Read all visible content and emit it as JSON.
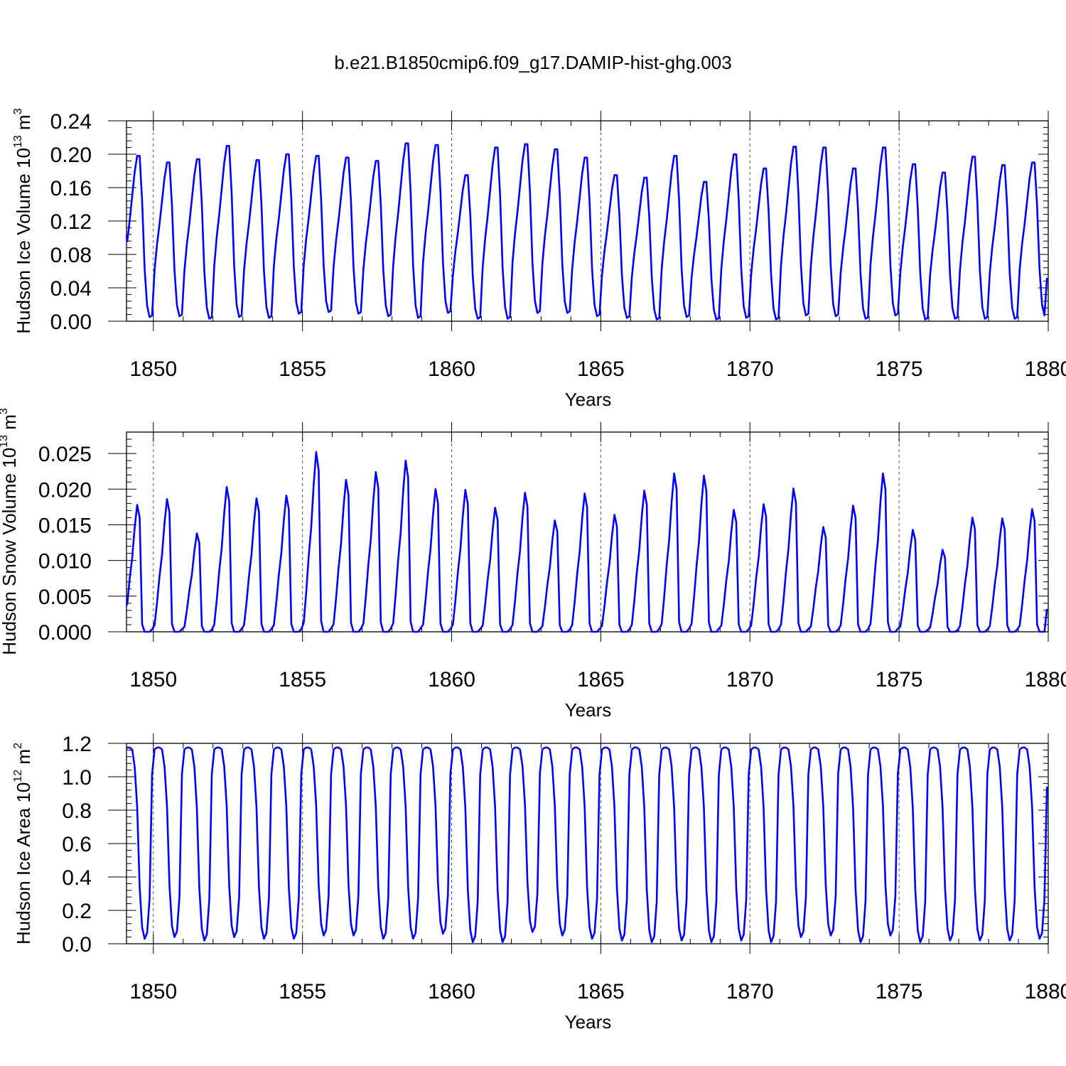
{
  "figure": {
    "title": "b.e21.B1850cmip6.f09_g17.DAMIP-hist-ghg.003"
  },
  "chart_data": [
    {
      "type": "line",
      "title": "",
      "xlabel": "Years",
      "ylabel": "Hudson Ice Volume 10",
      "ylabel_sup": "13",
      "ylabel_unit": " m",
      "ylabel_unit_sup": "3",
      "xlim": [
        1849.1,
        1880.0
      ],
      "ylim": [
        0.0,
        0.24
      ],
      "xticks": [
        1850,
        1855,
        1860,
        1865,
        1870,
        1875,
        1880
      ],
      "yticks": [
        0.0,
        0.04,
        0.08,
        0.12,
        0.16,
        0.2,
        0.24
      ],
      "ytick_labels": [
        "0.00",
        "0.04",
        "0.08",
        "0.12",
        "0.16",
        "0.20",
        "0.24"
      ],
      "vlines": [
        1850,
        1855,
        1860,
        1865,
        1870,
        1875
      ],
      "line_color": "#0000ff",
      "series": [
        {
          "x_start": 1849.0417,
          "x_step": 0.083333,
          "peaks": [
            0.198,
            0.19,
            0.194,
            0.21,
            0.193,
            0.2,
            0.198,
            0.196,
            0.192,
            0.213,
            0.211,
            0.175,
            0.208,
            0.212,
            0.206,
            0.196,
            0.175,
            0.172,
            0.198,
            0.167,
            0.2,
            0.183,
            0.209,
            0.208,
            0.183,
            0.208,
            0.188,
            0.178,
            0.197,
            0.187,
            0.19
          ],
          "troughs": [
            0.005,
            0.006,
            0.003,
            0.005,
            0.004,
            0.009,
            0.011,
            0.009,
            0.006,
            0.004,
            0.01,
            0.003,
            0.003,
            0.01,
            0.01,
            0.006,
            0.004,
            0.002,
            0.005,
            0.002,
            0.004,
            0.002,
            0.007,
            0.006,
            0.003,
            0.007,
            0.002,
            0.003,
            0.003,
            0.003,
            0.007
          ],
          "first_value": 0.102,
          "last_value": 0.052,
          "shape": "ice"
        }
      ]
    },
    {
      "type": "line",
      "title": "",
      "xlabel": "Years",
      "ylabel": "Hudson Snow Volume 10",
      "ylabel_sup": "13",
      "ylabel_unit": " m",
      "ylabel_unit_sup": "3",
      "xlim": [
        1849.1,
        1880.0
      ],
      "ylim": [
        0.0,
        0.028
      ],
      "xticks": [
        1850,
        1855,
        1860,
        1865,
        1870,
        1875,
        1880
      ],
      "yticks": [
        0.0,
        0.005,
        0.01,
        0.015,
        0.02,
        0.025
      ],
      "ytick_labels": [
        "0.000",
        "0.005",
        "0.010",
        "0.015",
        "0.020",
        "0.025"
      ],
      "vlines": [
        1850,
        1855,
        1860,
        1865,
        1870,
        1875
      ],
      "line_color": "#0000ff",
      "series": [
        {
          "x_start": 1849.0417,
          "x_step": 0.083333,
          "peaks": [
            0.0178,
            0.0186,
            0.0138,
            0.0203,
            0.0187,
            0.0191,
            0.0252,
            0.0213,
            0.0224,
            0.024,
            0.02,
            0.0199,
            0.0174,
            0.0195,
            0.0156,
            0.0194,
            0.0164,
            0.0198,
            0.0222,
            0.0219,
            0.0171,
            0.0179,
            0.0201,
            0.0147,
            0.0177,
            0.0222,
            0.0143,
            0.0115,
            0.016,
            0.0159,
            0.0172
          ],
          "troughs": [
            0.0,
            0.0,
            0.0,
            0.0,
            0.0,
            0.0,
            0.0,
            0.0,
            0.0,
            0.0,
            0.0,
            0.0,
            0.0,
            0.0,
            0.0,
            0.0,
            0.0,
            0.0,
            0.0,
            0.0,
            0.0,
            0.0,
            0.0,
            0.0,
            0.0,
            0.0,
            0.0,
            0.0,
            0.0,
            0.0,
            0.0
          ],
          "first_value": 0.0037,
          "last_value": 0.0032,
          "shape": "snow"
        }
      ]
    },
    {
      "type": "line",
      "title": "",
      "xlabel": "Years",
      "ylabel": "Hudson Ice Area 10",
      "ylabel_sup": "12",
      "ylabel_unit": " m",
      "ylabel_unit_sup": "2",
      "xlim": [
        1849.1,
        1880.0
      ],
      "ylim": [
        0.0,
        1.2
      ],
      "xticks": [
        1850,
        1855,
        1860,
        1865,
        1870,
        1875,
        1880
      ],
      "yticks": [
        0.0,
        0.2,
        0.4,
        0.6,
        0.8,
        1.0,
        1.2
      ],
      "ytick_labels": [
        "0.0",
        "0.2",
        "0.4",
        "0.6",
        "0.8",
        "1.0",
        "1.2"
      ],
      "vlines": [
        1850,
        1855,
        1860,
        1865,
        1870,
        1875
      ],
      "line_color": "#0000ff",
      "series": [
        {
          "x_start": 1849.0417,
          "x_step": 0.083333,
          "peaks": [
            1.175,
            1.175,
            1.175,
            1.175,
            1.175,
            1.175,
            1.175,
            1.175,
            1.175,
            1.175,
            1.175,
            1.175,
            1.175,
            1.175,
            1.175,
            1.175,
            1.175,
            1.175,
            1.175,
            1.175,
            1.175,
            1.175,
            1.175,
            1.175,
            1.175,
            1.175,
            1.175,
            1.175,
            1.175,
            1.175,
            1.175
          ],
          "troughs": [
            0.03,
            0.04,
            0.02,
            0.04,
            0.03,
            0.03,
            0.05,
            0.05,
            0.03,
            0.03,
            0.06,
            0.01,
            0.01,
            0.07,
            0.05,
            0.03,
            0.02,
            0.01,
            0.02,
            0.01,
            0.02,
            0.01,
            0.04,
            0.05,
            0.01,
            0.05,
            0.01,
            0.02,
            0.02,
            0.02,
            0.03
          ],
          "first_value": 1.17,
          "last_value": 0.94,
          "shape": "area"
        }
      ]
    }
  ]
}
